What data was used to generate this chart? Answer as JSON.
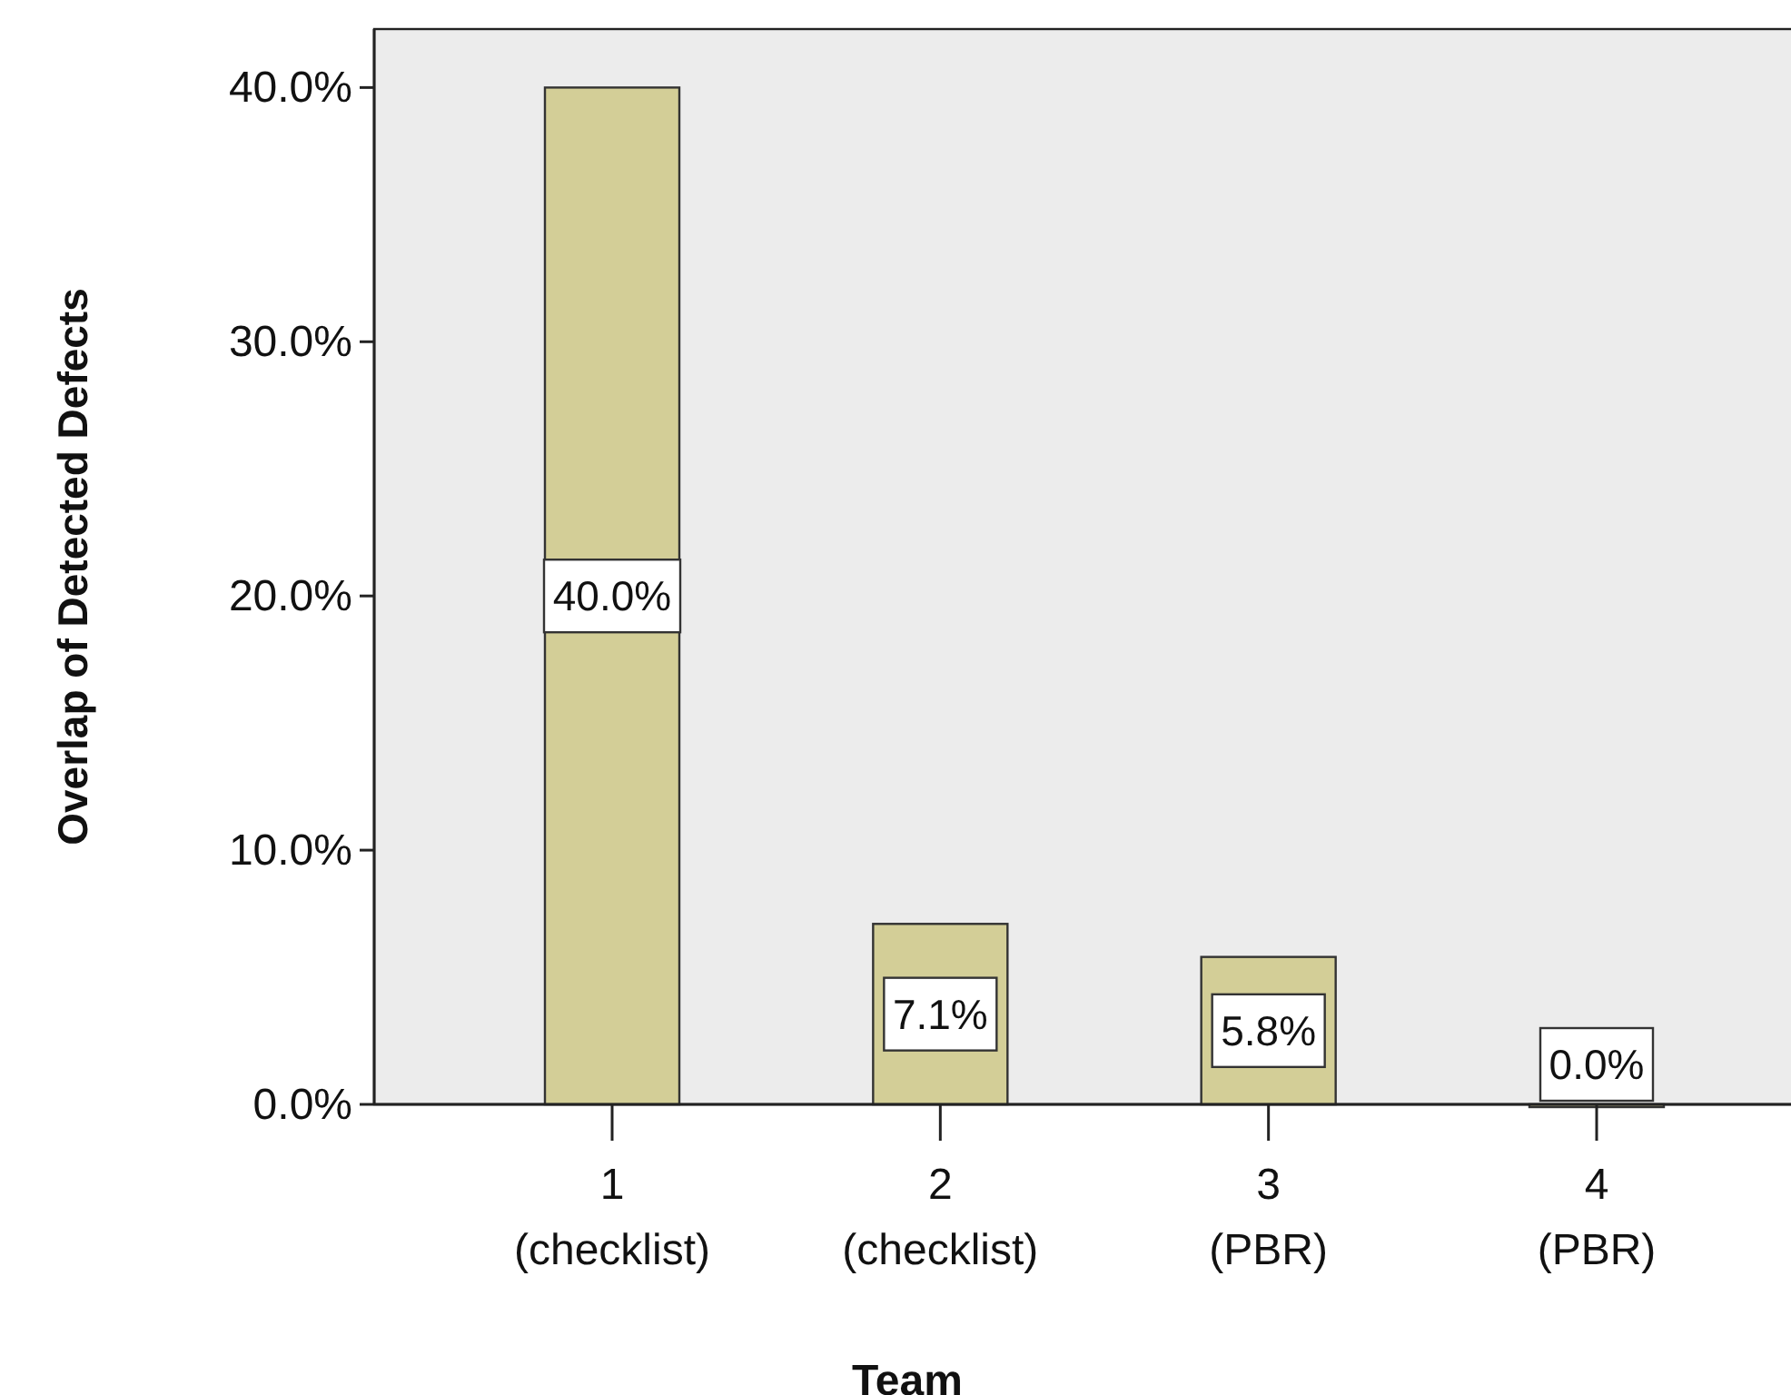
{
  "chart_data": {
    "type": "bar",
    "xlabel": "Team",
    "ylabel": "Overlap of Detected Defects",
    "categories": [
      "1 (checklist)",
      "2 (checklist)",
      "3 (PBR)",
      "4 (PBR)"
    ],
    "values": [
      40.0,
      7.1,
      5.8,
      0.0
    ],
    "color": "#d3ce97",
    "value_labels": [
      "40.0%",
      "7.1%",
      "5.8%",
      "0.0%"
    ],
    "ylim": [
      0,
      42.3
    ],
    "yticks": [
      {
        "value": 0,
        "label": "0.0%"
      },
      {
        "value": 10,
        "label": "10.0%"
      },
      {
        "value": 20,
        "label": "20.0%"
      },
      {
        "value": 30,
        "label": "30.0%"
      },
      {
        "value": 40,
        "label": "40.0%"
      }
    ],
    "grid": false
  }
}
